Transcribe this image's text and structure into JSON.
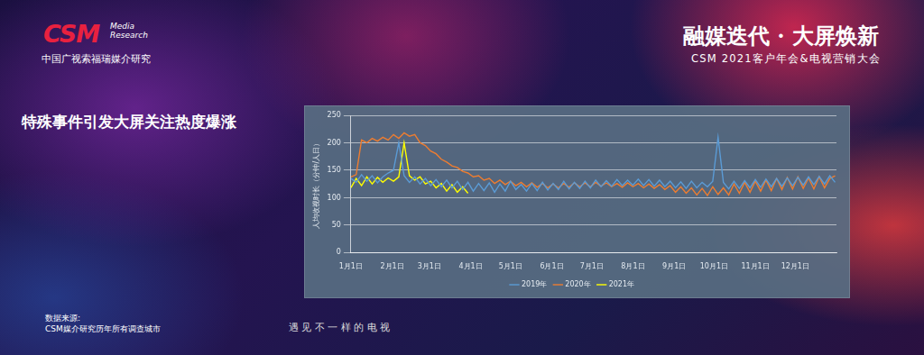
{
  "slide": {
    "logo": "CSM",
    "logo_sub": [
      "Media",
      "Research"
    ],
    "org": "中国广视索福瑞媒介研究",
    "event_title": "融媒迭代 · 大屏焕新",
    "event_subtitle": "CSM 2021客户年会&电视营销大会",
    "heading": "特殊事件引发大屏关注热度爆涨",
    "source_label": "数据来源:",
    "source": "CSM媒介研究历年所有调查城市",
    "slogan": "遇 见 不 一 样 的 电 视"
  },
  "chart_data": {
    "type": "line",
    "y_label": "人均收视时长（分钟/人日）",
    "x": [
      0,
      4,
      8,
      12,
      16,
      20,
      24,
      28,
      32,
      36,
      40,
      44,
      48,
      52,
      56,
      60,
      64,
      68,
      72,
      76,
      80,
      84,
      88,
      92,
      96,
      100,
      104,
      108,
      112,
      116,
      120,
      124,
      128,
      132,
      136,
      140,
      144,
      148,
      152,
      156,
      160,
      164,
      168,
      172,
      176,
      180,
      184,
      188,
      192,
      196,
      200,
      204,
      208,
      212,
      216,
      220,
      224,
      228,
      232,
      236,
      240,
      244,
      248,
      252,
      256,
      260,
      264,
      268,
      272,
      276,
      280,
      284,
      288,
      292,
      296,
      300,
      304,
      308,
      312,
      316,
      320,
      324,
      328,
      332,
      336,
      340,
      344,
      348,
      352,
      356,
      360,
      364
    ],
    "xlim": [
      0,
      365
    ],
    "xticks": [
      {
        "value": 0,
        "label": "1月1日"
      },
      {
        "value": 31,
        "label": "2月1日"
      },
      {
        "value": 59,
        "label": "3月1日"
      },
      {
        "value": 90,
        "label": "4月1日"
      },
      {
        "value": 120,
        "label": "5月1日"
      },
      {
        "value": 151,
        "label": "6月1日"
      },
      {
        "value": 181,
        "label": "7月1日"
      },
      {
        "value": 212,
        "label": "8月1日"
      },
      {
        "value": 243,
        "label": "9月1日"
      },
      {
        "value": 273,
        "label": "10月1日"
      },
      {
        "value": 304,
        "label": "11月1日"
      },
      {
        "value": 334,
        "label": "12月1日"
      }
    ],
    "ylim": [
      0,
      250
    ],
    "yticks": [
      0,
      50,
      100,
      150,
      200,
      250
    ],
    "grid": true,
    "legend": "bottom",
    "series": [
      {
        "name": "2019年",
        "color": "#5b9bd5",
        "values": [
          135,
          128,
          142,
          130,
          140,
          127,
          138,
          145,
          150,
          200,
          140,
          128,
          138,
          125,
          135,
          122,
          133,
          120,
          132,
          118,
          130,
          115,
          128,
          112,
          126,
          113,
          127,
          110,
          125,
          112,
          130,
          115,
          124,
          112,
          126,
          113,
          128,
          114,
          126,
          115,
          130,
          116,
          128,
          117,
          130,
          118,
          132,
          120,
          131,
          121,
          133,
          122,
          132,
          123,
          134,
          122,
          133,
          121,
          132,
          120,
          130,
          118,
          129,
          117,
          130,
          118,
          128,
          120,
          130,
          210,
          128,
          116,
          130,
          117,
          131,
          118,
          133,
          119,
          134,
          120,
          135,
          121,
          136,
          122,
          137,
          123,
          138,
          124,
          139,
          125,
          140,
          128
        ]
      },
      {
        "name": "2020年",
        "color": "#ed7d31",
        "values": [
          138,
          142,
          205,
          200,
          208,
          203,
          210,
          205,
          215,
          208,
          218,
          212,
          215,
          200,
          195,
          185,
          180,
          170,
          165,
          158,
          155,
          148,
          145,
          138,
          140,
          132,
          135,
          126,
          132,
          124,
          130,
          122,
          128,
          120,
          127,
          119,
          126,
          118,
          125,
          118,
          126,
          119,
          127,
          120,
          127,
          120,
          128,
          121,
          127,
          120,
          126,
          119,
          127,
          120,
          126,
          118,
          125,
          117,
          124,
          115,
          122,
          110,
          120,
          108,
          118,
          105,
          117,
          104,
          120,
          106,
          118,
          105,
          125,
          108,
          128,
          110,
          130,
          112,
          132,
          113,
          135,
          115,
          137,
          116,
          138,
          117,
          136,
          116,
          138,
          118,
          135,
          140
        ]
      },
      {
        "name": "2021年",
        "color": "#ffff00",
        "values": [
          118,
          135,
          122,
          138,
          125,
          137,
          128,
          136,
          130,
          138,
          200,
          140,
          132,
          138,
          125,
          130,
          118,
          126,
          112,
          124,
          110,
          120,
          108,
          null,
          null,
          null,
          null,
          null,
          null,
          null,
          null,
          null,
          null,
          null,
          null,
          null,
          null,
          null,
          null,
          null,
          null,
          null,
          null,
          null,
          null,
          null,
          null,
          null,
          null,
          null,
          null,
          null,
          null,
          null,
          null,
          null,
          null,
          null,
          null,
          null,
          null,
          null,
          null,
          null,
          null,
          null,
          null,
          null,
          null,
          null,
          null,
          null,
          null,
          null,
          null,
          null,
          null,
          null,
          null,
          null,
          null,
          null,
          null,
          null,
          null,
          null,
          null,
          null,
          null,
          null,
          null,
          null
        ]
      }
    ]
  }
}
